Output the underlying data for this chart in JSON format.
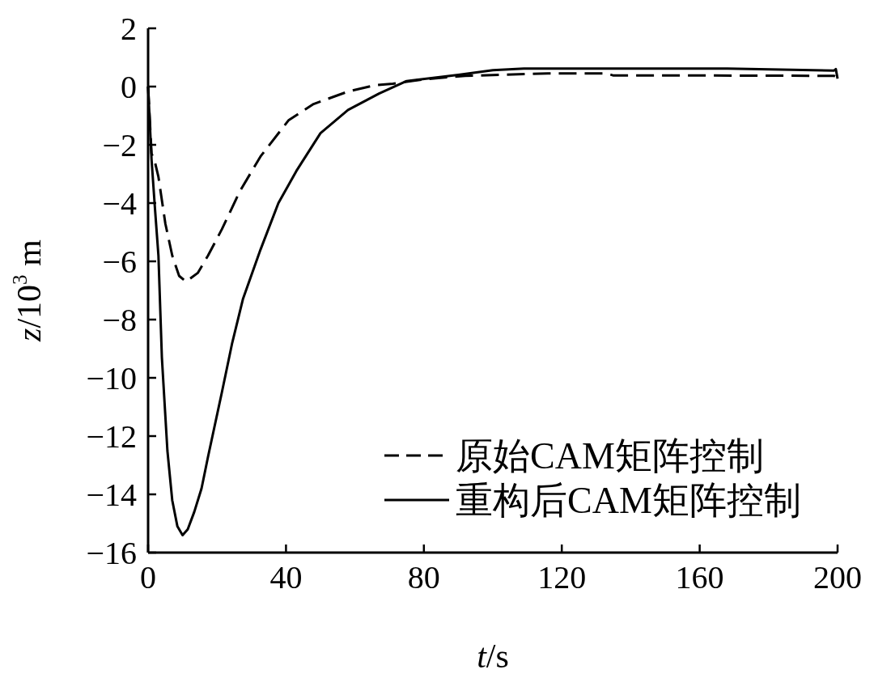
{
  "chart_data": {
    "type": "line",
    "xlabel": "*t*/s",
    "ylabel": "*z*/10$^{3}$ m",
    "xlim": [
      0,
      200
    ],
    "ylim": [
      -16,
      2
    ],
    "xticks": [
      0,
      40,
      80,
      120,
      160,
      200
    ],
    "yticks": [
      -16,
      -14,
      -12,
      -10,
      -8,
      -6,
      -4,
      -2,
      0,
      2
    ],
    "grid": false,
    "legend": "bottom right",
    "series": [
      {
        "name": "原始CAM矩阵控制",
        "color": "#000000",
        "line_style": "dashed",
        "x": [
          0,
          1,
          2,
          3,
          5,
          7,
          9,
          11,
          14.4,
          17.4,
          21.4,
          26.6,
          32.6,
          40.8,
          48,
          58,
          66,
          71,
          80,
          92,
          116,
          133,
          135,
          160,
          192,
          199,
          200
        ],
        "values": [
          0,
          -2.3,
          -2.6,
          -3.1,
          -4.7,
          -5.8,
          -6.5,
          -6.7,
          -6.4,
          -5.8,
          -4.9,
          -3.6,
          -2.4,
          -1.15,
          -0.6,
          -0.17,
          0.05,
          0.1,
          0.25,
          0.37,
          0.45,
          0.45,
          0.38,
          0.38,
          0.37,
          0.37,
          0.3
        ]
      },
      {
        "name": "重构后CAM矩阵控制",
        "color": "#000000",
        "line_style": "solid",
        "x": [
          0,
          1,
          2,
          3,
          4,
          5.6,
          7,
          8.5,
          10,
          11.5,
          13.4,
          15.5,
          17.4,
          21.4,
          24.4,
          27.5,
          32.6,
          37.8,
          43,
          50,
          58,
          67,
          75,
          90,
          100,
          109,
          168,
          199,
          199.5,
          200
        ],
        "values": [
          0,
          -2.5,
          -4.2,
          -5.8,
          -9.3,
          -12.5,
          -14.2,
          -15.1,
          -15.4,
          -15.2,
          -14.6,
          -13.8,
          -12.7,
          -10.5,
          -8.8,
          -7.3,
          -5.6,
          -4.0,
          -2.9,
          -1.6,
          -0.8,
          -0.24,
          0.19,
          0.4,
          0.56,
          0.62,
          0.62,
          0.55,
          0.6,
          0.27
        ]
      }
    ]
  }
}
